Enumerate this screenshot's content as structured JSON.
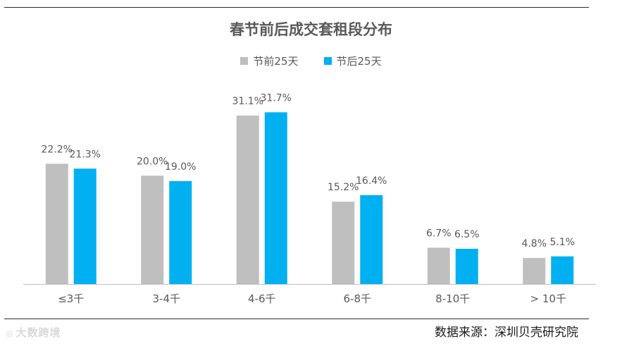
{
  "chart_data": {
    "type": "bar",
    "title": "春节前后成交套租段分布",
    "categories": [
      "≤3千",
      "3-4千",
      "4-6千",
      "6-8千",
      "8-10千",
      "> 10千"
    ],
    "series": [
      {
        "name": "节前25天",
        "color": "#bfbfbf",
        "values": [
          22.2,
          20.0,
          31.1,
          15.2,
          6.7,
          4.8
        ],
        "labels": [
          "22.2%",
          "20.0%",
          "31.1%",
          "15.2%",
          "6.7%",
          "4.8%"
        ]
      },
      {
        "name": "节后25天",
        "color": "#00b0f0",
        "values": [
          21.3,
          19.0,
          31.7,
          16.4,
          6.5,
          5.1
        ],
        "labels": [
          "21.3%",
          "19.0%",
          "31.7%",
          "16.4%",
          "6.5%",
          "5.1%"
        ]
      }
    ],
    "ylim": [
      0,
      35
    ],
    "grid": false,
    "legend_position": "top-center"
  },
  "source_text": "数据来源：深圳贝壳研究院",
  "watermark_text": "大数跨境"
}
